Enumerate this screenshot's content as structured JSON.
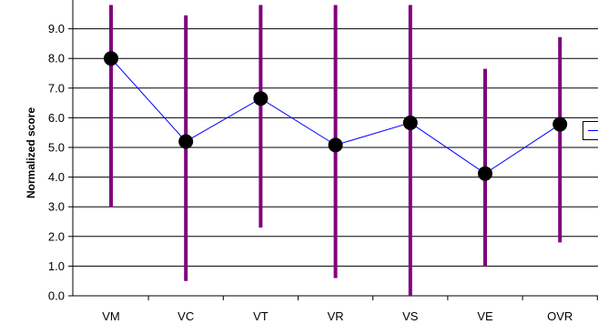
{
  "chart_data": {
    "type": "line",
    "title": "",
    "xlabel": "",
    "ylabel": "Normalized score",
    "categories": [
      "VM",
      "VC",
      "VT",
      "VR",
      "VS",
      "VE",
      "OVR"
    ],
    "ylim": [
      0,
      9.8
    ],
    "yticks": [
      "0.0",
      "1.0",
      "2.0",
      "3.0",
      "4.0",
      "5.0",
      "6.0",
      "7.0",
      "8.0",
      "9.0"
    ],
    "grid": true,
    "legend": "right, clipped",
    "series": [
      {
        "values": [
          8.0,
          5.2,
          6.65,
          5.08,
          5.83,
          4.12,
          5.78
        ],
        "error_low": [
          3.0,
          0.5,
          2.3,
          0.6,
          0.0,
          1.0,
          1.8
        ],
        "error_high": [
          9.8,
          9.45,
          9.8,
          9.8,
          9.8,
          7.65,
          8.72
        ]
      }
    ],
    "colors": {
      "line": "#0000ff",
      "marker": "#000000",
      "error_bar": "#800080",
      "grid": "#000000"
    }
  }
}
